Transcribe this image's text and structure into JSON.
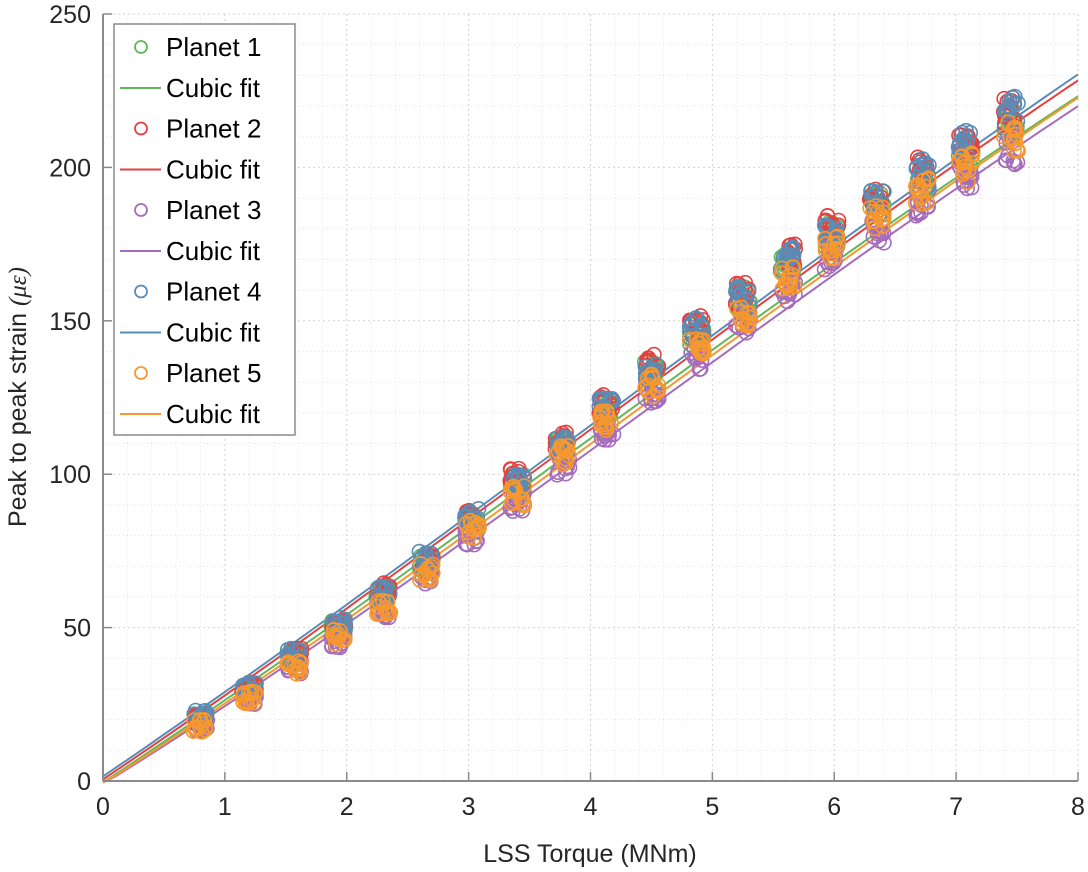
{
  "chart_data": {
    "type": "scatter",
    "title": "",
    "xlabel": "LSS Torque (MNm)",
    "ylabel_main": "Peak to peak strain ",
    "ylabel_unit": "(με)",
    "xlim": [
      0,
      8
    ],
    "ylim": [
      0,
      250
    ],
    "xticks": [
      0,
      1,
      2,
      3,
      4,
      5,
      6,
      7,
      8
    ],
    "yticks": [
      0,
      50,
      100,
      150,
      200,
      250
    ],
    "x_minor_step": 0.2,
    "y_minor_step": 10,
    "grid": "major and minor (dotted)",
    "legend_position": "top-left",
    "cluster_x": [
      0.8,
      1.2,
      1.57,
      1.93,
      2.3,
      2.65,
      3.03,
      3.4,
      3.77,
      4.13,
      4.5,
      4.87,
      5.25,
      5.62,
      5.98,
      6.35,
      6.72,
      7.08,
      7.45
    ],
    "series": [
      {
        "name": "Planet 1",
        "fit_name": "Cubic fit",
        "color": "#60B85A",
        "fit_coeffs": [
          -0.5,
          26.2,
          0.7,
          -0.06
        ],
        "cluster_means": [
          20,
          30,
          41,
          50,
          61,
          71,
          84,
          97,
          109,
          121,
          133,
          145,
          157,
          169,
          178,
          188,
          197,
          205,
          215
        ]
      },
      {
        "name": "Planet 2",
        "fit_name": "Cubic fit",
        "color": "#E4403F",
        "fit_coeffs": [
          0.5,
          26.8,
          0.65,
          -0.055
        ],
        "cluster_means": [
          20,
          30,
          41,
          50,
          62,
          72,
          86,
          99,
          111,
          123,
          136,
          148,
          159,
          171,
          180,
          189,
          199,
          207,
          218
        ]
      },
      {
        "name": "Planet 3",
        "fit_name": "Cubic fit",
        "color": "#A66CBC",
        "fit_coeffs": [
          -1.0,
          24.5,
          0.95,
          -0.07
        ],
        "cluster_means": [
          18,
          27,
          37,
          46,
          56,
          67,
          80,
          91,
          103,
          114,
          127,
          138,
          150,
          160,
          171,
          180,
          189,
          198,
          206
        ]
      },
      {
        "name": "Planet 4",
        "fit_name": "Cubic fit",
        "color": "#5A8CB8",
        "fit_coeffs": [
          1.5,
          27.0,
          0.6,
          -0.05
        ],
        "cluster_means": [
          21,
          30,
          41,
          51,
          61,
          72,
          86,
          97,
          110,
          122,
          134,
          147,
          158,
          170,
          180,
          189,
          198,
          207,
          218
        ]
      },
      {
        "name": "Planet 5",
        "fit_name": "Cubic fit",
        "color": "#F7982E",
        "fit_coeffs": [
          -0.8,
          25.3,
          0.85,
          -0.065
        ],
        "cluster_means": [
          18,
          27,
          37,
          47,
          57,
          68,
          82,
          93,
          106,
          117,
          129,
          141,
          152,
          164,
          174,
          183,
          192,
          200,
          210
        ]
      }
    ]
  }
}
